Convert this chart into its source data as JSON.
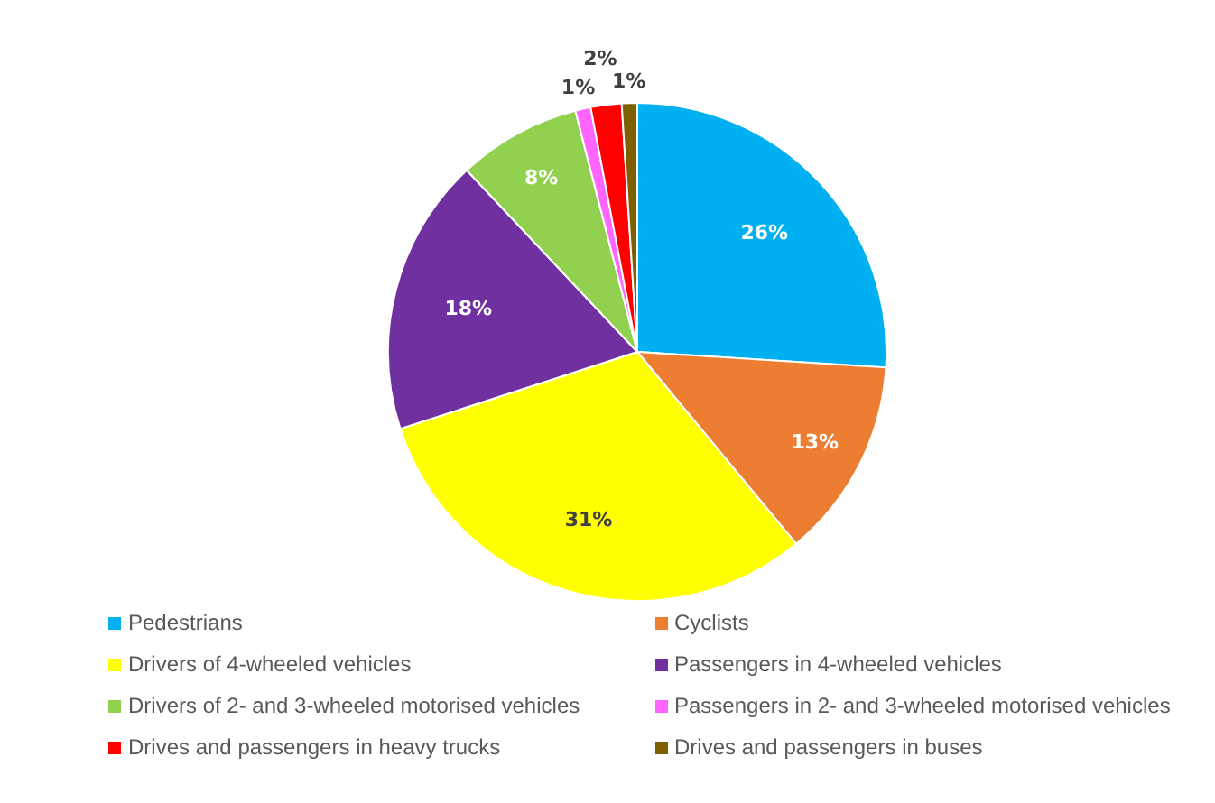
{
  "chart_data": {
    "type": "pie",
    "categories": [
      "Pedestrians",
      "Cyclists",
      "Drivers of 4-wheeled vehicles",
      "Passengers in 4-wheeled vehicles",
      "Drivers of 2- and 3-wheeled motorised vehicles",
      "Passengers in 2- and 3-wheeled motorised vehicles",
      "Drives and passengers in heavy trucks",
      "Drives and passengers in buses"
    ],
    "values": [
      26,
      13,
      31,
      18,
      8,
      1,
      2,
      1
    ],
    "value_labels": [
      "26%",
      "13%",
      "31%",
      "18%",
      "8%",
      "1%",
      "2%",
      "1%"
    ],
    "colors": [
      "#00b0f0",
      "#ed7d31",
      "#ffff00",
      "#7030a0",
      "#92d050",
      "#ff66ff",
      "#ff0000",
      "#7f6000"
    ],
    "legend": "bottom"
  }
}
